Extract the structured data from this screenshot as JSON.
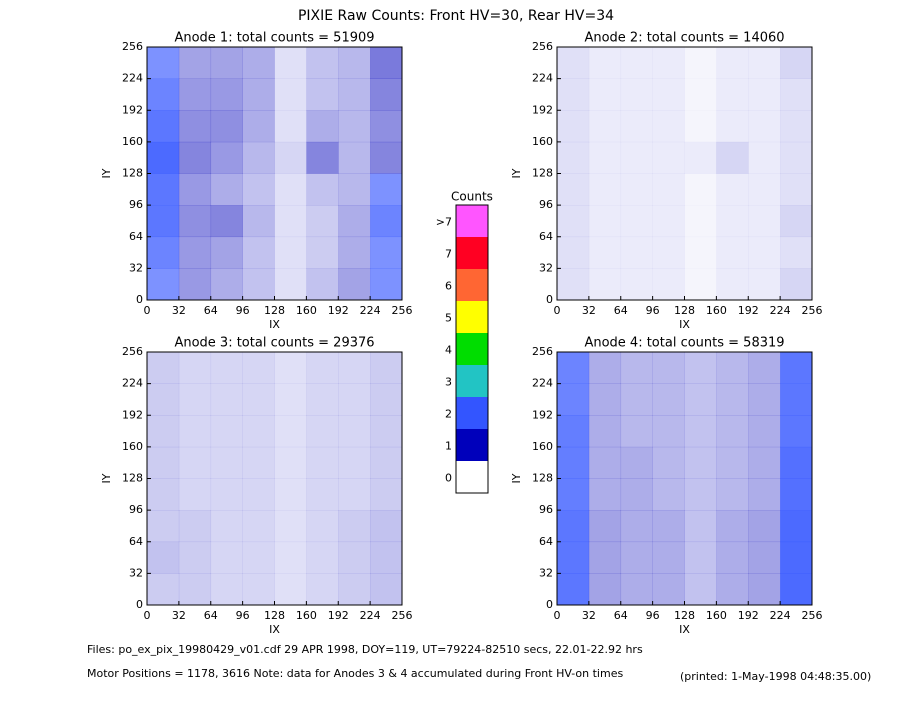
{
  "title": "PIXIE Raw Counts:  Front HV=30, Rear HV=34",
  "colorbar": {
    "title": "Counts",
    "levels": [
      0,
      1,
      2,
      3,
      4,
      5,
      6,
      7,
      {
        "value": 8,
        "label": ">7"
      }
    ],
    "colors": [
      "#ffffff",
      "#0000bb",
      "#3355ff",
      "#22c4c4",
      "#00dd00",
      "#ffff00",
      "#ff6633",
      "#ff0022",
      "#ff55ff"
    ]
  },
  "footer": {
    "files": "Files: po_ex_pix_19980429_v01.cdf    29 APR 1998, DOY=119, UT=79224-82510 secs, 22.01-22.92 hrs",
    "motor": "Motor Positions = 1178, 3616    Note: data for Anodes 3 & 4 accumulated during Front HV-on times",
    "printed": "(printed:  1-May-1998 04:48:35.00)"
  },
  "chart_data": [
    {
      "type": "heatmap",
      "title": "Anode 1: total counts = 51909",
      "xlabel": "IX",
      "ylabel": "IY",
      "xlim": [
        0,
        256
      ],
      "ylim": [
        0,
        256
      ],
      "xticks": [
        0,
        32,
        64,
        96,
        128,
        160,
        192,
        224,
        256
      ],
      "yticks": [
        0,
        32,
        64,
        96,
        128,
        160,
        192,
        224,
        256
      ],
      "z": [
        [
          1.6,
          1.0,
          0.8,
          0.6,
          0.3,
          0.6,
          0.9,
          1.6
        ],
        [
          1.8,
          1.0,
          0.9,
          0.6,
          0.3,
          0.5,
          0.8,
          1.6
        ],
        [
          2.0,
          1.1,
          1.2,
          0.7,
          0.3,
          0.5,
          0.8,
          1.8
        ],
        [
          2.0,
          1.0,
          0.8,
          0.6,
          0.3,
          0.6,
          0.7,
          1.6
        ],
        [
          2.2,
          1.2,
          1.0,
          0.7,
          0.4,
          1.2,
          0.7,
          1.2
        ],
        [
          2.0,
          1.1,
          1.1,
          0.8,
          0.3,
          0.8,
          0.7,
          1.1
        ],
        [
          1.8,
          1.0,
          1.0,
          0.8,
          0.3,
          0.6,
          0.7,
          1.2
        ],
        [
          1.6,
          0.9,
          0.9,
          0.8,
          0.3,
          0.6,
          0.7,
          1.3
        ]
      ]
    },
    {
      "type": "heatmap",
      "title": "Anode 2: total counts = 14060",
      "xlabel": "IX",
      "ylabel": "IY",
      "xlim": [
        0,
        256
      ],
      "ylim": [
        0,
        256
      ],
      "xticks": [
        0,
        32,
        64,
        96,
        128,
        160,
        192,
        224,
        256
      ],
      "yticks": [
        0,
        32,
        64,
        96,
        128,
        160,
        192,
        224,
        256
      ],
      "z": [
        [
          0.3,
          0.2,
          0.2,
          0.2,
          0.1,
          0.2,
          0.2,
          0.4
        ],
        [
          0.3,
          0.2,
          0.2,
          0.2,
          0.1,
          0.2,
          0.2,
          0.3
        ],
        [
          0.3,
          0.2,
          0.2,
          0.2,
          0.1,
          0.2,
          0.2,
          0.4
        ],
        [
          0.3,
          0.2,
          0.2,
          0.2,
          0.1,
          0.2,
          0.2,
          0.3
        ],
        [
          0.3,
          0.2,
          0.2,
          0.2,
          0.2,
          0.4,
          0.2,
          0.3
        ],
        [
          0.3,
          0.2,
          0.2,
          0.2,
          0.1,
          0.2,
          0.2,
          0.3
        ],
        [
          0.3,
          0.2,
          0.2,
          0.2,
          0.1,
          0.2,
          0.2,
          0.3
        ],
        [
          0.3,
          0.2,
          0.2,
          0.2,
          0.1,
          0.2,
          0.2,
          0.4
        ]
      ]
    },
    {
      "type": "heatmap",
      "title": "Anode 3: total counts = 29376",
      "xlabel": "IX",
      "ylabel": "IY",
      "xlim": [
        0,
        256
      ],
      "ylim": [
        0,
        256
      ],
      "xticks": [
        0,
        32,
        64,
        96,
        128,
        160,
        192,
        224,
        256
      ],
      "yticks": [
        0,
        32,
        64,
        96,
        128,
        160,
        192,
        224,
        256
      ],
      "z": [
        [
          0.5,
          0.5,
          0.4,
          0.4,
          0.3,
          0.4,
          0.5,
          0.6
        ],
        [
          0.6,
          0.5,
          0.4,
          0.4,
          0.3,
          0.4,
          0.5,
          0.6
        ],
        [
          0.5,
          0.5,
          0.4,
          0.4,
          0.3,
          0.4,
          0.5,
          0.6
        ],
        [
          0.5,
          0.4,
          0.4,
          0.4,
          0.3,
          0.4,
          0.4,
          0.5
        ],
        [
          0.5,
          0.4,
          0.4,
          0.4,
          0.3,
          0.4,
          0.4,
          0.5
        ],
        [
          0.5,
          0.4,
          0.4,
          0.4,
          0.3,
          0.4,
          0.4,
          0.5
        ],
        [
          0.5,
          0.4,
          0.4,
          0.4,
          0.3,
          0.4,
          0.4,
          0.5
        ],
        [
          0.5,
          0.4,
          0.4,
          0.4,
          0.3,
          0.4,
          0.4,
          0.5
        ]
      ]
    },
    {
      "type": "heatmap",
      "title": "Anode 4: total counts = 58319",
      "xlabel": "IX",
      "ylabel": "IY",
      "xlim": [
        0,
        256
      ],
      "ylim": [
        0,
        256
      ],
      "xticks": [
        0,
        32,
        64,
        96,
        128,
        160,
        192,
        224,
        256
      ],
      "yticks": [
        0,
        32,
        64,
        96,
        128,
        160,
        192,
        224,
        256
      ],
      "z": [
        [
          2.0,
          0.9,
          0.8,
          0.8,
          0.6,
          0.8,
          0.9,
          2.2
        ],
        [
          2.0,
          0.9,
          0.8,
          0.8,
          0.6,
          0.8,
          0.9,
          2.2
        ],
        [
          2.0,
          0.9,
          0.8,
          0.8,
          0.6,
          0.8,
          0.9,
          2.2
        ],
        [
          1.9,
          0.8,
          0.8,
          0.7,
          0.6,
          0.7,
          0.8,
          2.1
        ],
        [
          1.9,
          0.8,
          0.8,
          0.7,
          0.6,
          0.7,
          0.8,
          2.1
        ],
        [
          1.9,
          0.8,
          0.7,
          0.7,
          0.6,
          0.7,
          0.8,
          2.0
        ],
        [
          1.8,
          0.8,
          0.7,
          0.7,
          0.6,
          0.7,
          0.8,
          2.0
        ],
        [
          1.8,
          0.8,
          0.7,
          0.7,
          0.6,
          0.7,
          0.8,
          2.0
        ]
      ]
    }
  ]
}
